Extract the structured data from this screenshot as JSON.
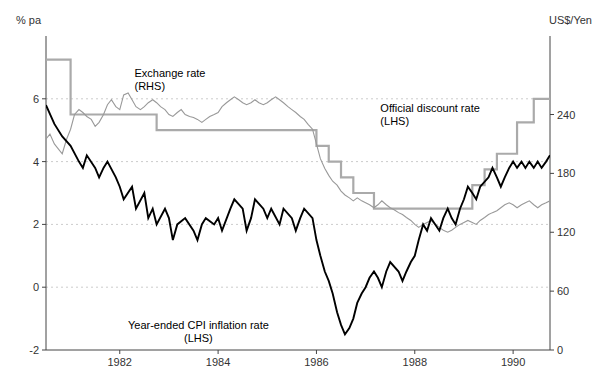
{
  "chart_data": {
    "type": "line",
    "ylabel": "% pa",
    "y2label": "US$/Yen",
    "xlim": [
      1980.5,
      1990.75
    ],
    "xticks": [
      1982,
      1984,
      1986,
      1988,
      1990
    ],
    "ylim": [
      -2,
      8
    ],
    "yticks": [
      -2,
      0,
      2,
      4,
      6
    ],
    "y2lim": [
      0,
      320
    ],
    "y2ticks": [
      0,
      60,
      120,
      180,
      240
    ],
    "grid": true,
    "series": [
      {
        "color": "#aaaaaa",
        "axis": "y",
        "x": [
          1980.5,
          1980.5,
          1981.0,
          1981.0,
          1981.75,
          1981.75,
          1982.75,
          1982.75,
          1983.75,
          1983.75,
          1986.0,
          1986.0,
          1986.25,
          1986.25,
          1986.5,
          1986.5,
          1986.75,
          1986.75,
          1987.17,
          1987.17,
          1989.17,
          1989.17,
          1989.42,
          1989.42,
          1989.67,
          1989.67,
          1990.08,
          1990.08,
          1990.42,
          1990.42,
          1990.75
        ],
        "values": [
          7.25,
          7.25,
          7.25,
          5.5,
          5.5,
          5.5,
          5.5,
          5.0,
          5.0,
          5.0,
          5.0,
          4.5,
          4.5,
          4.0,
          4.0,
          3.5,
          3.5,
          3.0,
          3.0,
          2.5,
          2.5,
          3.25,
          3.25,
          3.75,
          3.75,
          4.25,
          4.25,
          5.25,
          5.25,
          6.0,
          6.0
        ]
      },
      {
        "color": "#999999",
        "axis": "y2",
        "x": [
          1980.5,
          1980.58,
          1980.67,
          1980.75,
          1980.83,
          1980.92,
          1981.0,
          1981.08,
          1981.17,
          1981.25,
          1981.33,
          1981.42,
          1981.5,
          1981.58,
          1981.67,
          1981.75,
          1981.83,
          1981.92,
          1982.0,
          1982.08,
          1982.17,
          1982.25,
          1982.33,
          1982.42,
          1982.5,
          1982.58,
          1982.67,
          1982.75,
          1982.83,
          1982.92,
          1983.0,
          1983.08,
          1983.17,
          1983.25,
          1983.33,
          1983.42,
          1983.5,
          1983.58,
          1983.67,
          1983.75,
          1983.83,
          1983.92,
          1984.0,
          1984.08,
          1984.17,
          1984.25,
          1984.33,
          1984.42,
          1984.5,
          1984.58,
          1984.67,
          1984.75,
          1984.83,
          1984.92,
          1985.0,
          1985.08,
          1985.17,
          1985.25,
          1985.33,
          1985.42,
          1985.5,
          1985.58,
          1985.67,
          1985.75,
          1985.83,
          1985.92,
          1986.0,
          1986.08,
          1986.17,
          1986.25,
          1986.33,
          1986.42,
          1986.5,
          1986.58,
          1986.67,
          1986.75,
          1986.83,
          1986.92,
          1987.0,
          1987.08,
          1987.17,
          1987.25,
          1987.33,
          1987.42,
          1987.5,
          1987.58,
          1987.67,
          1987.75,
          1987.83,
          1987.92,
          1988.0,
          1988.08,
          1988.17,
          1988.25,
          1988.33,
          1988.42,
          1988.5,
          1988.58,
          1988.67,
          1988.75,
          1988.83,
          1988.92,
          1989.0,
          1989.08,
          1989.17,
          1989.25,
          1989.33,
          1989.42,
          1989.5,
          1989.58,
          1989.67,
          1989.75,
          1989.83,
          1989.92,
          1990.0,
          1990.08,
          1990.17,
          1990.25,
          1990.33,
          1990.42,
          1990.5,
          1990.58,
          1990.67,
          1990.75
        ],
        "values": [
          215,
          220,
          210,
          205,
          200,
          215,
          225,
          240,
          245,
          242,
          238,
          235,
          228,
          232,
          240,
          250,
          255,
          248,
          245,
          260,
          262,
          255,
          248,
          245,
          248,
          252,
          255,
          252,
          248,
          245,
          240,
          238,
          242,
          245,
          240,
          238,
          237,
          235,
          232,
          235,
          238,
          240,
          242,
          248,
          252,
          255,
          258,
          255,
          252,
          250,
          252,
          255,
          252,
          250,
          252,
          255,
          258,
          255,
          252,
          248,
          245,
          242,
          238,
          235,
          230,
          225,
          210,
          195,
          185,
          178,
          172,
          168,
          162,
          158,
          155,
          152,
          155,
          152,
          150,
          148,
          145,
          148,
          152,
          148,
          145,
          143,
          140,
          138,
          135,
          132,
          128,
          125,
          128,
          130,
          132,
          128,
          125,
          122,
          120,
          122,
          125,
          128,
          130,
          132,
          130,
          128,
          132,
          135,
          138,
          140,
          142,
          145,
          148,
          150,
          148,
          145,
          148,
          150,
          152,
          148,
          145,
          148,
          150,
          152
        ]
      },
      {
        "color": "#000000",
        "axis": "y",
        "x": [
          1980.5,
          1980.67,
          1980.83,
          1981.0,
          1981.17,
          1981.25,
          1981.33,
          1981.5,
          1981.58,
          1981.67,
          1981.75,
          1981.92,
          1982.0,
          1982.08,
          1982.25,
          1982.33,
          1982.5,
          1982.58,
          1982.67,
          1982.75,
          1982.92,
          1983.0,
          1983.08,
          1983.17,
          1983.33,
          1983.5,
          1983.58,
          1983.67,
          1983.75,
          1983.92,
          1984.0,
          1984.08,
          1984.25,
          1984.33,
          1984.5,
          1984.58,
          1984.67,
          1984.75,
          1984.92,
          1985.0,
          1985.08,
          1985.25,
          1985.33,
          1985.5,
          1985.58,
          1985.67,
          1985.75,
          1985.92,
          1986.0,
          1986.08,
          1986.17,
          1986.25,
          1986.33,
          1986.42,
          1986.5,
          1986.58,
          1986.67,
          1986.75,
          1986.83,
          1986.92,
          1987.0,
          1987.08,
          1987.17,
          1987.25,
          1987.33,
          1987.42,
          1987.5,
          1987.67,
          1987.75,
          1987.83,
          1987.92,
          1988.0,
          1988.08,
          1988.17,
          1988.25,
          1988.33,
          1988.5,
          1988.58,
          1988.67,
          1988.75,
          1988.83,
          1988.92,
          1989.0,
          1989.08,
          1989.17,
          1989.25,
          1989.33,
          1989.5,
          1989.58,
          1989.67,
          1989.75,
          1989.83,
          1989.92,
          1990.0,
          1990.08,
          1990.17,
          1990.25,
          1990.33,
          1990.42,
          1990.5,
          1990.58,
          1990.67,
          1990.75
        ],
        "values": [
          5.8,
          5.2,
          4.8,
          4.5,
          4.0,
          3.8,
          4.2,
          3.8,
          3.5,
          3.8,
          4.0,
          3.5,
          3.2,
          2.8,
          3.2,
          2.5,
          3.0,
          2.2,
          2.5,
          2.0,
          2.5,
          2.2,
          1.5,
          2.0,
          2.2,
          1.8,
          1.5,
          2.0,
          2.2,
          2.0,
          2.2,
          1.8,
          2.5,
          2.8,
          2.5,
          1.8,
          2.2,
          2.8,
          2.5,
          2.2,
          2.5,
          2.0,
          2.5,
          2.2,
          1.8,
          2.2,
          2.5,
          2.2,
          1.5,
          1.0,
          0.5,
          0.2,
          -0.2,
          -0.8,
          -1.2,
          -1.5,
          -1.3,
          -1.0,
          -0.5,
          -0.2,
          0.0,
          0.3,
          0.5,
          0.3,
          0.0,
          0.5,
          0.8,
          0.5,
          0.2,
          0.5,
          0.8,
          1.0,
          1.5,
          2.0,
          1.8,
          2.2,
          1.8,
          2.2,
          2.5,
          2.2,
          2.0,
          2.5,
          2.8,
          3.2,
          3.0,
          2.8,
          3.2,
          3.5,
          3.8,
          3.5,
          3.2,
          3.5,
          3.8,
          4.0,
          3.8,
          4.0,
          3.8,
          4.0,
          3.8,
          4.0,
          3.8,
          4.0,
          4.2
        ]
      }
    ],
    "annotations": [
      {
        "text": "Exchange rate\n(RHS)",
        "x": 1982.3,
        "y": 6.6
      },
      {
        "text": "Official discount rate\n(LHS)",
        "x": 1987.3,
        "y": 5.5
      },
      {
        "text": "Year-ended CPI inflation rate\n(LHS)",
        "x": 1983.6,
        "y": -1.0
      }
    ]
  }
}
